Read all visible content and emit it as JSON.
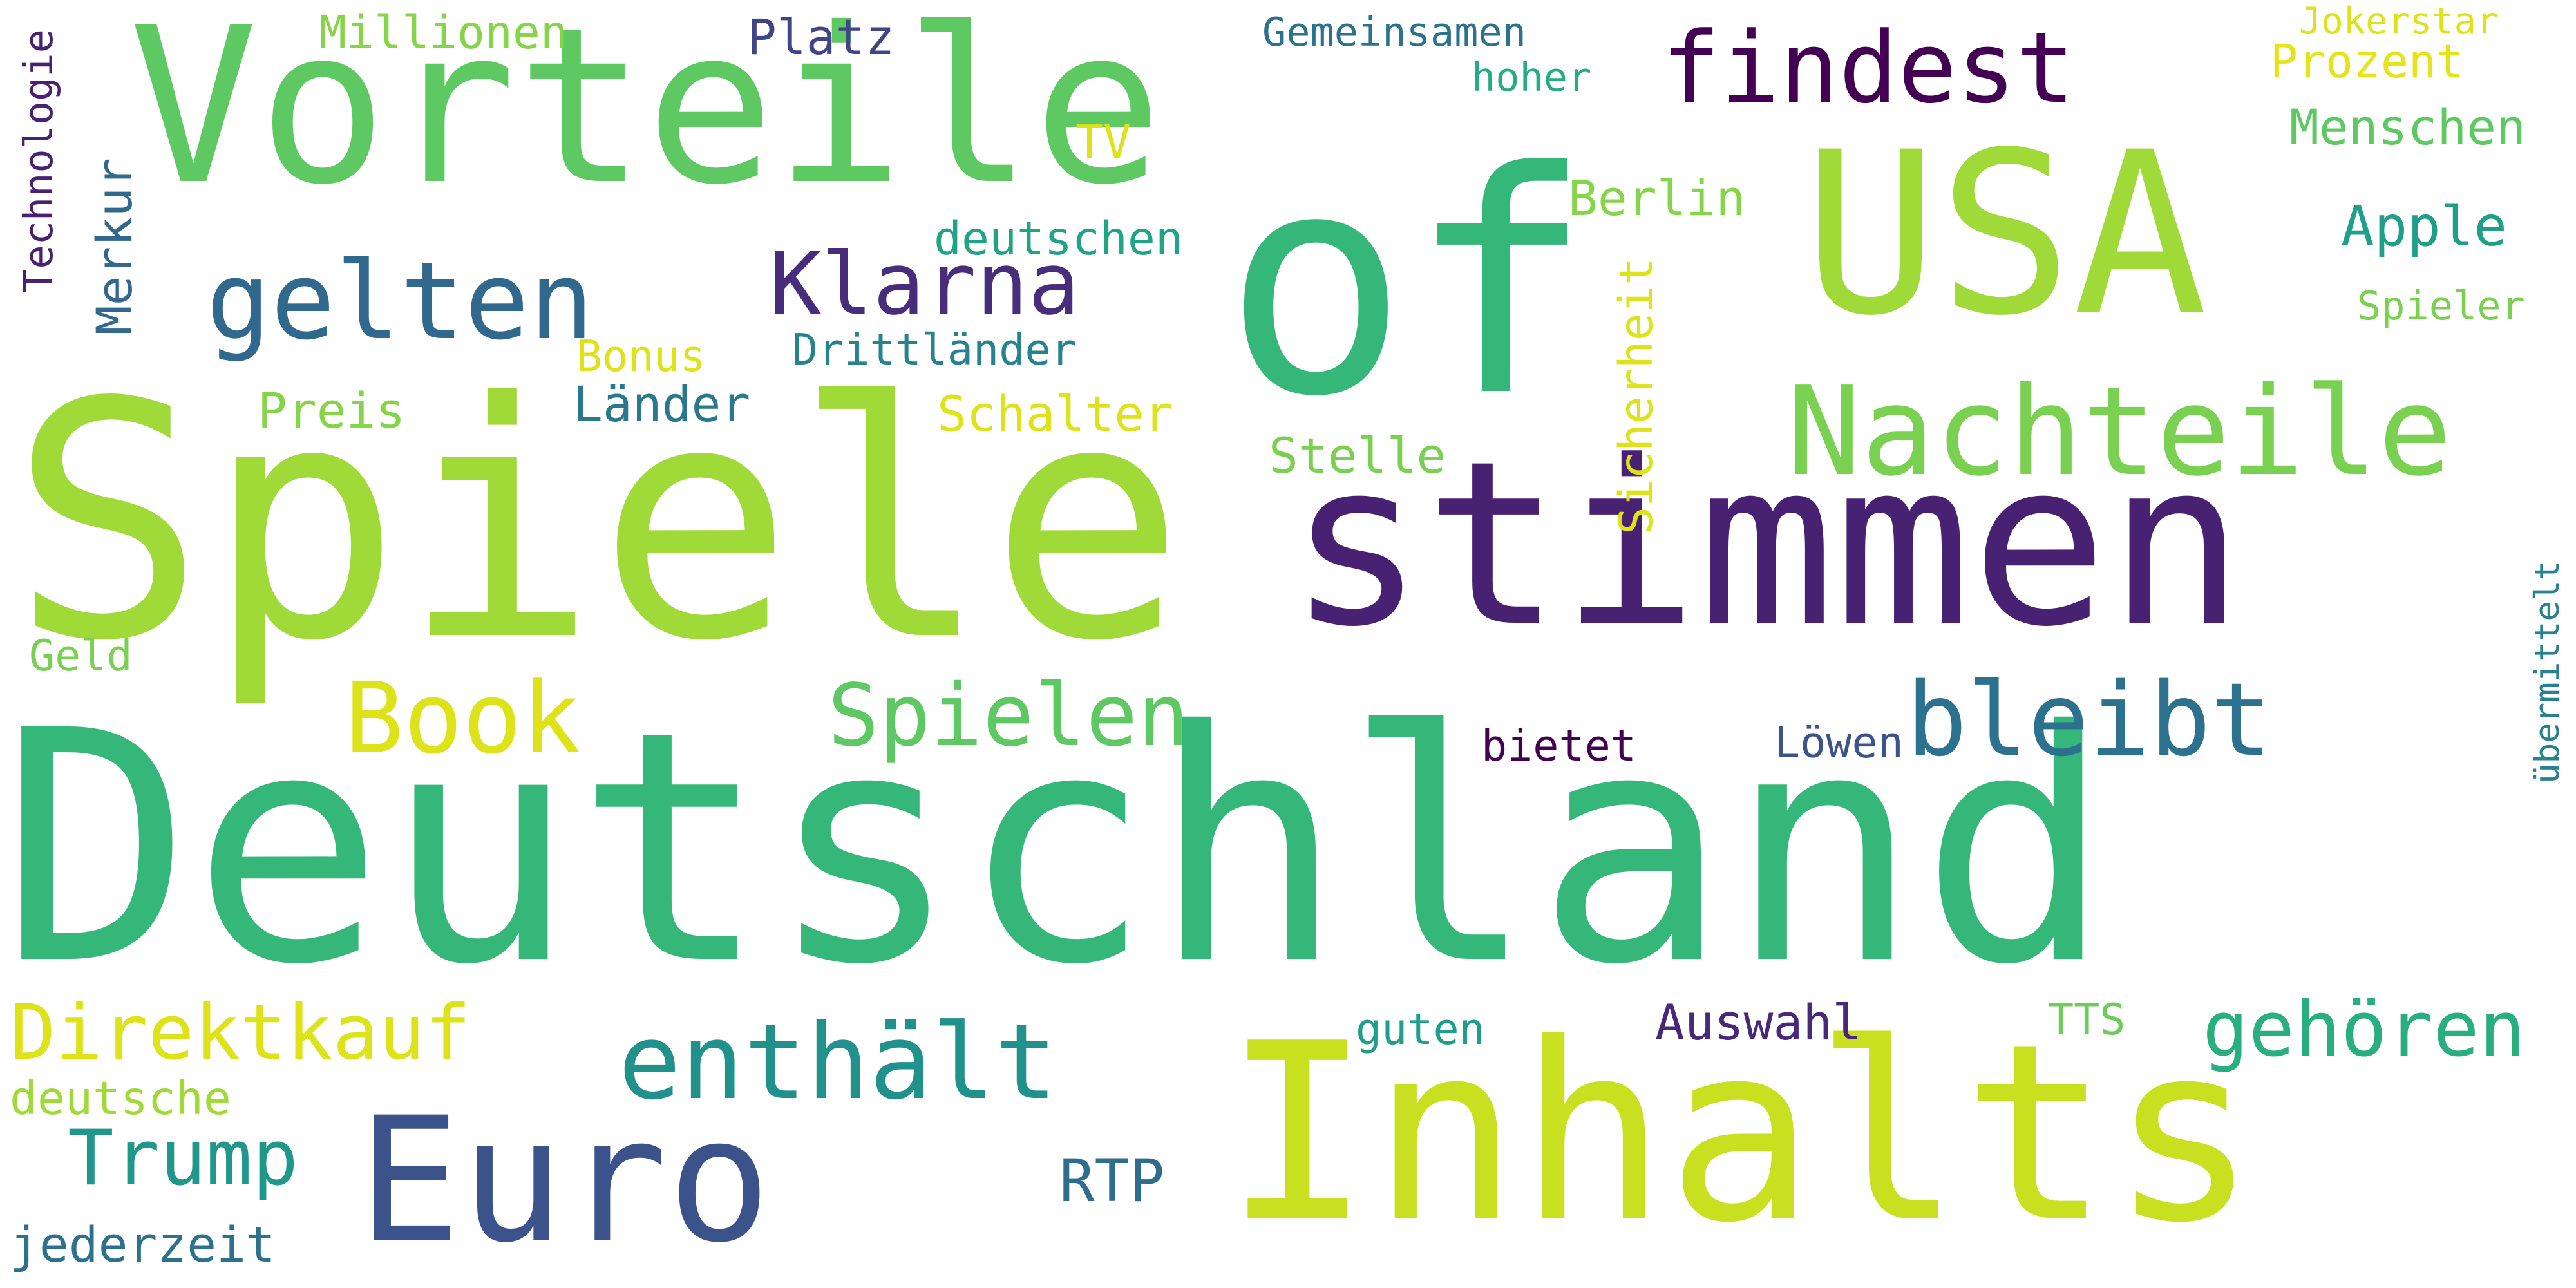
{
  "words": [
    {
      "text": "Deutschland",
      "color": "#35b779"
    },
    {
      "text": "Spiele",
      "color": "#a0da39"
    },
    {
      "text": "Inhalts",
      "color": "#c8e020"
    },
    {
      "text": "stimmen",
      "color": "#482173"
    },
    {
      "text": "Vorteile",
      "color": "#5ec962"
    },
    {
      "text": "USA",
      "color": "#a0da39"
    },
    {
      "text": "of",
      "color": "#35b779"
    },
    {
      "text": "Euro",
      "color": "#3b528b"
    },
    {
      "text": "Nachteile",
      "color": "#7ad151"
    },
    {
      "text": "findest",
      "color": "#440154"
    },
    {
      "text": "enthält",
      "color": "#21918c"
    },
    {
      "text": "gelten",
      "color": "#31688e"
    },
    {
      "text": "Klarna",
      "color": "#472d7b"
    },
    {
      "text": "Book",
      "color": "#dde318"
    },
    {
      "text": "bleibt",
      "color": "#2c728e"
    },
    {
      "text": "Spielen",
      "color": "#5ec962"
    },
    {
      "text": "Direktkauf",
      "color": "#dde318"
    },
    {
      "text": "Trump",
      "color": "#1f988b"
    },
    {
      "text": "gehören",
      "color": "#29af7f"
    },
    {
      "text": "RTP",
      "color": "#2e6d8e"
    },
    {
      "text": "Millionen",
      "color": "#86d549"
    },
    {
      "text": "Platz",
      "color": "#414487"
    },
    {
      "text": "Gemeinsamen",
      "color": "#2c728e"
    },
    {
      "text": "Jokerstar",
      "color": "#dde318"
    },
    {
      "text": "Prozent",
      "color": "#e5e419"
    },
    {
      "text": "hoher",
      "color": "#25ac82"
    },
    {
      "text": "Menschen",
      "color": "#5ec962"
    },
    {
      "text": "TV",
      "color": "#dde318"
    },
    {
      "text": "Berlin",
      "color": "#86d549"
    },
    {
      "text": "deutschen",
      "color": "#20a486"
    },
    {
      "text": "Apple",
      "color": "#1f9e89"
    },
    {
      "text": "Spieler",
      "color": "#7ad151"
    },
    {
      "text": "Bonus",
      "color": "#dde318"
    },
    {
      "text": "Drittländer",
      "color": "#26828e"
    },
    {
      "text": "Preis",
      "color": "#86d549"
    },
    {
      "text": "Länder",
      "color": "#2a788e"
    },
    {
      "text": "Schalter",
      "color": "#dde318"
    },
    {
      "text": "Stelle",
      "color": "#7ad151"
    },
    {
      "text": "Geld",
      "color": "#7ad151"
    },
    {
      "text": "bietet",
      "color": "#440154"
    },
    {
      "text": "Löwen",
      "color": "#3b528b"
    },
    {
      "text": "guten",
      "color": "#1f9e89"
    },
    {
      "text": "Auswahl",
      "color": "#482878"
    },
    {
      "text": "TTS",
      "color": "#6ccd5a"
    },
    {
      "text": "deutsche",
      "color": "#a0da39"
    },
    {
      "text": "jederzeit",
      "color": "#2c728e"
    },
    {
      "text": "Technologie",
      "color": "#482173"
    },
    {
      "text": "Merkur",
      "color": "#31688e"
    },
    {
      "text": "Sicherheit",
      "color": "#dde318"
    },
    {
      "text": "übermittelt",
      "color": "#26828e"
    }
  ]
}
